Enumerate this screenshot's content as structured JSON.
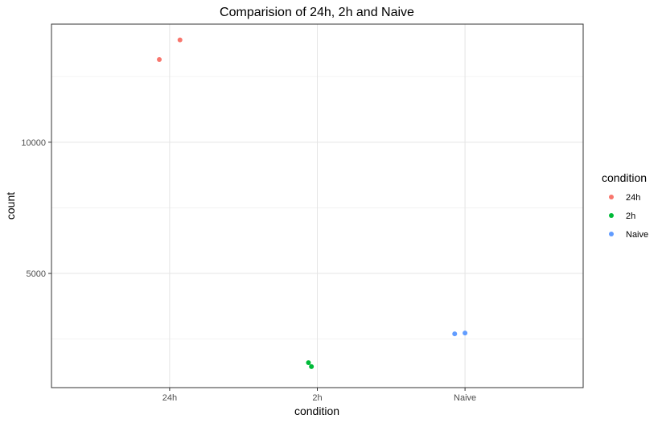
{
  "chart_data": {
    "type": "scatter",
    "title": "Comparision of 24h, 2h and Naive",
    "xlabel": "condition",
    "ylabel": "count",
    "categories": [
      "24h",
      "2h",
      "Naive"
    ],
    "y_ticks": [
      5000,
      10000
    ],
    "ylim": [
      650,
      14500
    ],
    "grid": true,
    "legend": {
      "title": "condition",
      "placement": "right",
      "entries": [
        "24h",
        "2h",
        "Naive"
      ]
    },
    "series": [
      {
        "name": "24h",
        "color": "#f8766d",
        "points": [
          {
            "x": "24h",
            "offset": -0.07,
            "y": 13150
          },
          {
            "x": "24h",
            "offset": 0.07,
            "y": 13900
          }
        ]
      },
      {
        "name": "2h",
        "color": "#00ba38",
        "points": [
          {
            "x": "2h",
            "offset": -0.06,
            "y": 1600
          },
          {
            "x": "2h",
            "offset": -0.04,
            "y": 1450
          }
        ]
      },
      {
        "name": "Naive",
        "color": "#619cff",
        "points": [
          {
            "x": "Naive",
            "offset": -0.07,
            "y": 2700
          },
          {
            "x": "Naive",
            "offset": 0.0,
            "y": 2730
          }
        ]
      }
    ]
  }
}
